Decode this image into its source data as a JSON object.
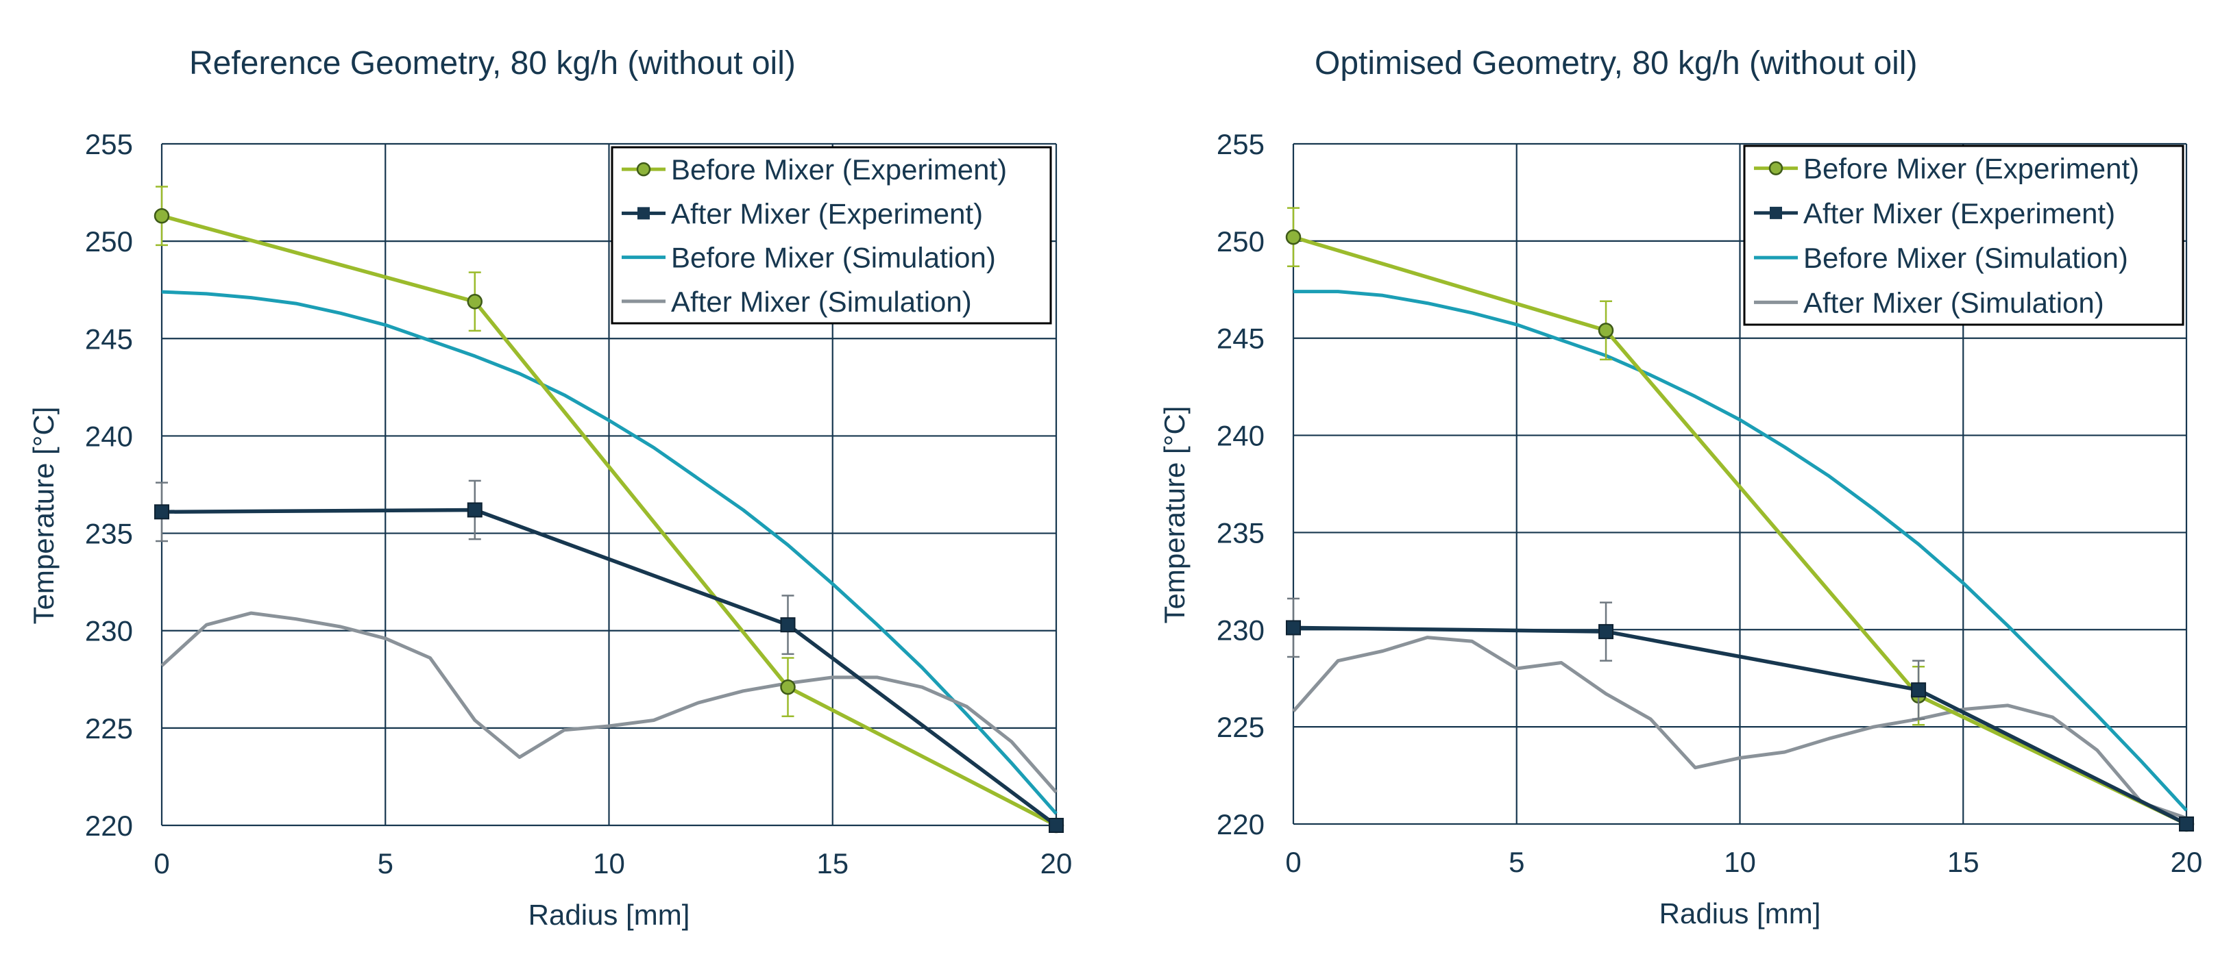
{
  "chart_data": [
    {
      "type": "line",
      "title": "Reference Geometry, 80 kg/h (without oil)",
      "xlabel": "Radius [mm]",
      "ylabel": "Temperature   [°C]",
      "xlim": [
        0,
        20
      ],
      "ylim": [
        220,
        255
      ],
      "xticks": [
        0,
        5,
        10,
        15,
        20
      ],
      "yticks": [
        220,
        225,
        230,
        235,
        240,
        245,
        250,
        255
      ],
      "grid": true,
      "legend_position": "top-right",
      "series": [
        {
          "name": "Before Mixer (Experiment)",
          "color": "#9BBB2C",
          "marker": "circle",
          "x": [
            0,
            7,
            14,
            20
          ],
          "y": [
            251.3,
            246.9,
            227.1,
            220.0
          ],
          "error": [
            1.5,
            1.5,
            1.5,
            0
          ]
        },
        {
          "name": "After Mixer (Experiment)",
          "color": "#17374F",
          "marker": "square",
          "x": [
            0,
            7,
            14,
            20
          ],
          "y": [
            236.1,
            236.2,
            230.3,
            220.0
          ],
          "error": [
            1.5,
            1.5,
            1.5,
            0
          ]
        },
        {
          "name": "Before Mixer (Simulation)",
          "color": "#1B9EB5",
          "marker": "none",
          "x": [
            0,
            1,
            2,
            3,
            4,
            5,
            6,
            7,
            8,
            9,
            10,
            11,
            12,
            13,
            14,
            15,
            16,
            17,
            18,
            19,
            20
          ],
          "y": [
            247.4,
            247.3,
            247.1,
            246.8,
            246.3,
            245.7,
            244.9,
            244.1,
            243.2,
            242.1,
            240.8,
            239.4,
            237.8,
            236.2,
            234.4,
            232.4,
            230.3,
            228.1,
            225.7,
            223.2,
            220.6
          ]
        },
        {
          "name": "After Mixer (Simulation)",
          "color": "#8A9299",
          "marker": "none",
          "x": [
            0,
            1,
            2,
            3,
            4,
            5,
            6,
            7,
            8,
            9,
            10,
            11,
            12,
            13,
            14,
            15,
            16,
            17,
            18,
            19,
            20
          ],
          "y": [
            228.2,
            230.3,
            230.9,
            230.6,
            230.2,
            229.6,
            228.6,
            225.4,
            223.5,
            224.9,
            225.1,
            225.4,
            226.3,
            226.9,
            227.3,
            227.6,
            227.6,
            227.1,
            226.1,
            224.3,
            221.7
          ]
        }
      ]
    },
    {
      "type": "line",
      "title": "Optimised Geometry, 80 kg/h (without oil)",
      "xlabel": "Radius [mm]",
      "ylabel": "Temperature   [°C]",
      "xlim": [
        0,
        20
      ],
      "ylim": [
        220,
        255
      ],
      "xticks": [
        0,
        5,
        10,
        15,
        20
      ],
      "yticks": [
        220,
        225,
        230,
        235,
        240,
        245,
        250,
        255
      ],
      "grid": true,
      "legend_position": "top-right",
      "series": [
        {
          "name": "Before Mixer (Experiment)",
          "color": "#9BBB2C",
          "marker": "circle",
          "x": [
            0,
            7,
            14,
            20
          ],
          "y": [
            250.2,
            245.4,
            226.6,
            220.0
          ],
          "error": [
            1.5,
            1.5,
            1.5,
            0
          ]
        },
        {
          "name": "After Mixer (Experiment)",
          "color": "#17374F",
          "marker": "square",
          "x": [
            0,
            7,
            14,
            20
          ],
          "y": [
            230.1,
            229.9,
            226.9,
            220.0
          ],
          "error": [
            1.5,
            1.5,
            1.5,
            0
          ]
        },
        {
          "name": "Before Mixer (Simulation)",
          "color": "#1B9EB5",
          "marker": "none",
          "x": [
            0,
            1,
            2,
            3,
            4,
            5,
            6,
            7,
            8,
            9,
            10,
            11,
            12,
            13,
            14,
            15,
            16,
            17,
            18,
            19,
            20
          ],
          "y": [
            247.4,
            247.4,
            247.2,
            246.8,
            246.3,
            245.7,
            244.9,
            244.1,
            243.1,
            242.0,
            240.8,
            239.4,
            237.9,
            236.2,
            234.4,
            232.4,
            230.2,
            227.9,
            225.6,
            223.2,
            220.7
          ]
        },
        {
          "name": "After Mixer (Simulation)",
          "color": "#8A9299",
          "marker": "none",
          "x": [
            0,
            1,
            2,
            3,
            4,
            5,
            6,
            7,
            8,
            9,
            10,
            11,
            12,
            13,
            14,
            15,
            16,
            17,
            18,
            19,
            20
          ],
          "y": [
            225.8,
            228.4,
            228.9,
            229.6,
            229.4,
            228.0,
            228.3,
            226.7,
            225.4,
            222.9,
            223.4,
            223.7,
            224.4,
            225.0,
            225.4,
            225.9,
            226.1,
            225.5,
            223.8,
            221.1,
            220.3
          ]
        }
      ]
    }
  ]
}
